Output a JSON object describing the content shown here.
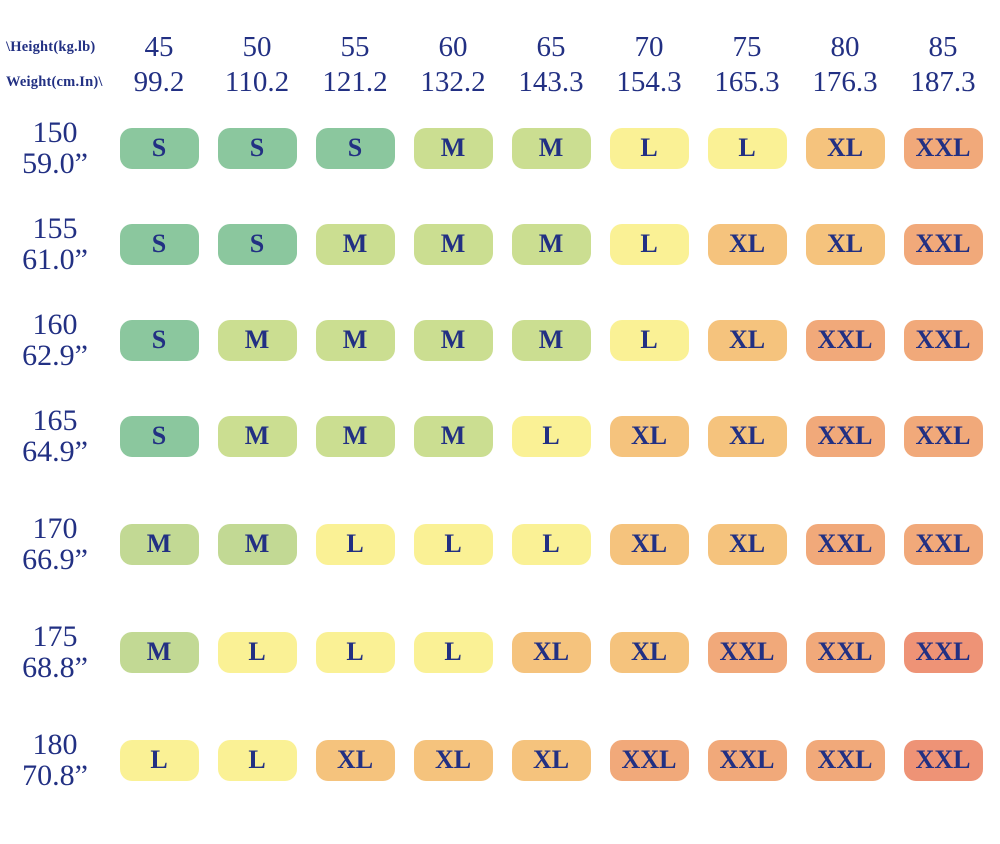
{
  "text_color": "#223083",
  "background": "#ffffff",
  "header": {
    "corner_line1": "\\Height(kg.lb)",
    "corner_line2": "Weight(cm.In)\\",
    "columns": [
      {
        "kg": "45",
        "lb": "99.2"
      },
      {
        "kg": "50",
        "lb": "110.2"
      },
      {
        "kg": "55",
        "lb": "121.2"
      },
      {
        "kg": "60",
        "lb": "132.2"
      },
      {
        "kg": "65",
        "lb": "143.3"
      },
      {
        "kg": "70",
        "lb": "154.3"
      },
      {
        "kg": "75",
        "lb": "165.3"
      },
      {
        "kg": "80",
        "lb": "176.3"
      },
      {
        "kg": "85",
        "lb": "187.3"
      }
    ]
  },
  "palette": {
    "S": "#8BC79E",
    "M": "#CBDE91",
    "M2": "#C2D994",
    "L": "#FAF195",
    "XL": "#F5C37D",
    "XXL": "#F1A97A",
    "XXL_DARK": "#EE9376"
  },
  "rows": [
    {
      "cm": "150",
      "in": "59.0”",
      "cells": [
        {
          "label": "S",
          "tone": "S"
        },
        {
          "label": "S",
          "tone": "S"
        },
        {
          "label": "S",
          "tone": "S"
        },
        {
          "label": "M",
          "tone": "M"
        },
        {
          "label": "M",
          "tone": "M"
        },
        {
          "label": "L",
          "tone": "L"
        },
        {
          "label": "L",
          "tone": "L"
        },
        {
          "label": "XL",
          "tone": "XL"
        },
        {
          "label": "XXL",
          "tone": "XXL"
        }
      ]
    },
    {
      "cm": "155",
      "in": "61.0”",
      "cells": [
        {
          "label": "S",
          "tone": "S"
        },
        {
          "label": "S",
          "tone": "S"
        },
        {
          "label": "M",
          "tone": "M"
        },
        {
          "label": "M",
          "tone": "M"
        },
        {
          "label": "M",
          "tone": "M"
        },
        {
          "label": "L",
          "tone": "L"
        },
        {
          "label": "XL",
          "tone": "XL"
        },
        {
          "label": "XL",
          "tone": "XL"
        },
        {
          "label": "XXL",
          "tone": "XXL"
        }
      ]
    },
    {
      "cm": "160",
      "in": "62.9”",
      "cells": [
        {
          "label": "S",
          "tone": "S"
        },
        {
          "label": "M",
          "tone": "M"
        },
        {
          "label": "M",
          "tone": "M"
        },
        {
          "label": "M",
          "tone": "M"
        },
        {
          "label": "M",
          "tone": "M"
        },
        {
          "label": "L",
          "tone": "L"
        },
        {
          "label": "XL",
          "tone": "XL"
        },
        {
          "label": "XXL",
          "tone": "XXL"
        },
        {
          "label": "XXL",
          "tone": "XXL"
        }
      ]
    },
    {
      "cm": "165",
      "in": "64.9”",
      "cells": [
        {
          "label": "S",
          "tone": "S"
        },
        {
          "label": "M",
          "tone": "M"
        },
        {
          "label": "M",
          "tone": "M"
        },
        {
          "label": "M",
          "tone": "M"
        },
        {
          "label": "L",
          "tone": "L"
        },
        {
          "label": "XL",
          "tone": "XL"
        },
        {
          "label": "XL",
          "tone": "XL"
        },
        {
          "label": "XXL",
          "tone": "XXL"
        },
        {
          "label": "XXL",
          "tone": "XXL"
        }
      ]
    },
    {
      "cm": "170",
      "in": "66.9”",
      "cells": [
        {
          "label": "M",
          "tone": "M2"
        },
        {
          "label": "M",
          "tone": "M2"
        },
        {
          "label": "L",
          "tone": "L"
        },
        {
          "label": "L",
          "tone": "L"
        },
        {
          "label": "L",
          "tone": "L"
        },
        {
          "label": "XL",
          "tone": "XL"
        },
        {
          "label": "XL",
          "tone": "XL"
        },
        {
          "label": "XXL",
          "tone": "XXL"
        },
        {
          "label": "XXL",
          "tone": "XXL"
        }
      ]
    },
    {
      "cm": "175",
      "in": "68.8”",
      "cells": [
        {
          "label": "M",
          "tone": "M2"
        },
        {
          "label": "L",
          "tone": "L"
        },
        {
          "label": "L",
          "tone": "L"
        },
        {
          "label": "L",
          "tone": "L"
        },
        {
          "label": "XL",
          "tone": "XL"
        },
        {
          "label": "XL",
          "tone": "XL"
        },
        {
          "label": "XXL",
          "tone": "XXL"
        },
        {
          "label": "XXL",
          "tone": "XXL"
        },
        {
          "label": "XXL",
          "tone": "XXL_DARK"
        }
      ]
    },
    {
      "cm": "180",
      "in": "70.8”",
      "cells": [
        {
          "label": "L",
          "tone": "L"
        },
        {
          "label": "L",
          "tone": "L"
        },
        {
          "label": "XL",
          "tone": "XL"
        },
        {
          "label": "XL",
          "tone": "XL"
        },
        {
          "label": "XL",
          "tone": "XL"
        },
        {
          "label": "XXL",
          "tone": "XXL"
        },
        {
          "label": "XXL",
          "tone": "XXL"
        },
        {
          "label": "XXL",
          "tone": "XXL"
        },
        {
          "label": "XXL",
          "tone": "XXL_DARK"
        }
      ]
    }
  ],
  "chart_data": {
    "type": "heatmap",
    "title": "",
    "corner_labels": [
      "\\Height(kg.lb)",
      "Weight(cm.In)\\"
    ],
    "x": {
      "kg": [
        45,
        50,
        55,
        60,
        65,
        70,
        75,
        80,
        85
      ],
      "lb": [
        99.2,
        110.2,
        121.2,
        132.2,
        143.3,
        154.3,
        165.3,
        176.3,
        187.3
      ]
    },
    "y": {
      "cm": [
        150,
        155,
        160,
        165,
        170,
        175,
        180
      ],
      "in": [
        "59.0”",
        "61.0”",
        "62.9”",
        "64.9”",
        "66.9”",
        "68.8”",
        "70.8”"
      ]
    },
    "values": [
      [
        "S",
        "S",
        "S",
        "M",
        "M",
        "L",
        "L",
        "XL",
        "XXL"
      ],
      [
        "S",
        "S",
        "M",
        "M",
        "M",
        "L",
        "XL",
        "XL",
        "XXL"
      ],
      [
        "S",
        "M",
        "M",
        "M",
        "M",
        "L",
        "XL",
        "XXL",
        "XXL"
      ],
      [
        "S",
        "M",
        "M",
        "M",
        "L",
        "XL",
        "XL",
        "XXL",
        "XXL"
      ],
      [
        "M",
        "M",
        "L",
        "L",
        "L",
        "XL",
        "XL",
        "XXL",
        "XXL"
      ],
      [
        "M",
        "L",
        "L",
        "L",
        "XL",
        "XL",
        "XXL",
        "XXL",
        "XXL"
      ],
      [
        "L",
        "L",
        "XL",
        "XL",
        "XL",
        "XXL",
        "XXL",
        "XXL",
        "XXL"
      ]
    ],
    "color_scale": {
      "S": "#8BC79E",
      "M": "#CBDE91",
      "L": "#FAF195",
      "XL": "#F5C37D",
      "XXL": "#F1A97A",
      "XXL_corner": "#EE9376"
    },
    "legend_position": "none",
    "grid": false
  }
}
